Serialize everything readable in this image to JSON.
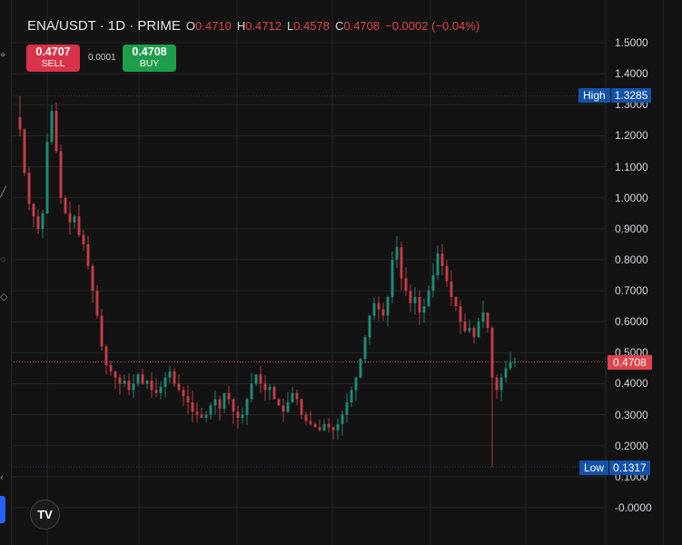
{
  "header": {
    "symbol": "ENA/USDT · 1D · PRIME",
    "open_label": "O",
    "open": "0.4710",
    "high_label": "H",
    "high": "0.4712",
    "low_label": "L",
    "low": "0.4578",
    "close_label": "C",
    "close": "0.4708",
    "change": "−0.0002 (−0.04%)"
  },
  "trade": {
    "sell_price": "0.4707",
    "sell_label": "SELL",
    "spread": "0.0001",
    "buy_price": "0.4708",
    "buy_label": "BUY"
  },
  "logo": "TV",
  "colors": {
    "up": "#1f9e87",
    "down": "#e0434b",
    "background": "#131313",
    "grid": "#262626",
    "tag_blue": "#1253a8",
    "price_tag": "#e0434b"
  },
  "chart_data": {
    "type": "candlestick",
    "ylim": [
      0,
      1.5
    ],
    "y_ticks": [
      "1.5000",
      "1.4000",
      "1.3000",
      "1.2000",
      "1.1000",
      "1.0000",
      "0.9000",
      "0.8000",
      "0.7000",
      "0.6000",
      "0.5000",
      "0.4000",
      "0.3000",
      "0.2000",
      "0.1000",
      "-0.0000"
    ],
    "grid": true,
    "high_label": "High",
    "high_value": "1.3285",
    "low_label": "Low",
    "low_value": "0.1317",
    "last_price": "0.4708",
    "closes": [
      1.22,
      1.08,
      0.98,
      0.94,
      0.9,
      0.95,
      1.18,
      1.28,
      1.15,
      1.0,
      0.95,
      0.92,
      0.94,
      0.88,
      0.85,
      0.78,
      0.7,
      0.62,
      0.52,
      0.46,
      0.44,
      0.42,
      0.4,
      0.41,
      0.38,
      0.4,
      0.43,
      0.4,
      0.41,
      0.38,
      0.37,
      0.39,
      0.42,
      0.44,
      0.4,
      0.38,
      0.36,
      0.34,
      0.31,
      0.3,
      0.29,
      0.3,
      0.33,
      0.35,
      0.32,
      0.37,
      0.35,
      0.31,
      0.29,
      0.3,
      0.35,
      0.4,
      0.43,
      0.4,
      0.38,
      0.39,
      0.35,
      0.33,
      0.31,
      0.34,
      0.37,
      0.35,
      0.3,
      0.28,
      0.27,
      0.26,
      0.25,
      0.27,
      0.26,
      0.25,
      0.27,
      0.3,
      0.34,
      0.38,
      0.42,
      0.48,
      0.55,
      0.62,
      0.66,
      0.64,
      0.62,
      0.68,
      0.8,
      0.84,
      0.74,
      0.7,
      0.66,
      0.68,
      0.63,
      0.65,
      0.7,
      0.75,
      0.82,
      0.78,
      0.73,
      0.68,
      0.65,
      0.6,
      0.57,
      0.58,
      0.55,
      0.6,
      0.63,
      0.58,
      0.42,
      0.38,
      0.42,
      0.45,
      0.47,
      0.4708
    ]
  }
}
